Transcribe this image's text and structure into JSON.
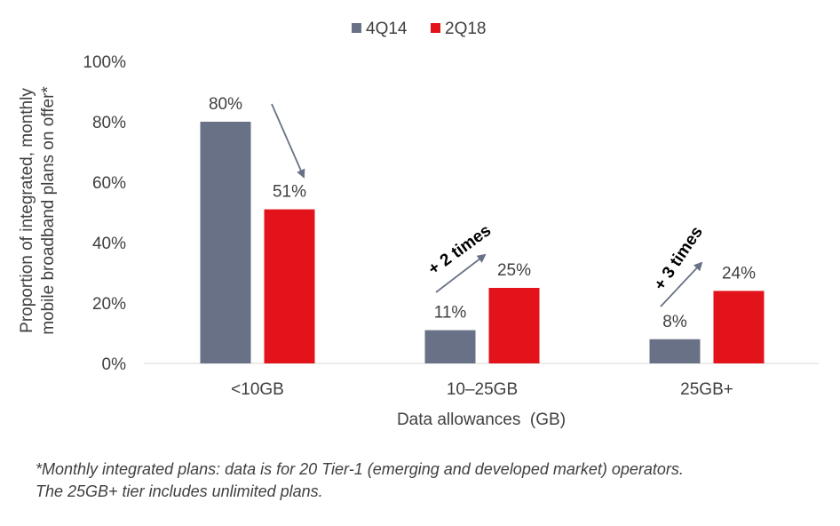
{
  "chart_data": {
    "type": "bar",
    "categories": [
      "<10GB",
      "10–25GB",
      "25GB+"
    ],
    "series": [
      {
        "name": "4Q14",
        "color": "#687185",
        "values": [
          80,
          11,
          8
        ],
        "labels": [
          "80%",
          "11%",
          "8%"
        ]
      },
      {
        "name": "2Q18",
        "color": "#E3131B",
        "values": [
          51,
          25,
          24
        ],
        "labels": [
          "51%",
          "25%",
          "24%"
        ]
      }
    ],
    "ylim": [
      0,
      100
    ],
    "yticks": [
      "0%",
      "20%",
      "40%",
      "60%",
      "80%",
      "100%"
    ],
    "ytick_values": [
      0,
      20,
      40,
      60,
      80,
      100
    ],
    "xlabel": "Data allowances  (GB)",
    "ylabel_lines": [
      "Proportion of integrated, monthly",
      "mobile broadband plans on offer*"
    ],
    "legend_position": "top-center",
    "annotations": [
      {
        "text": "+ 2 times",
        "category": "10–25GB"
      },
      {
        "text": "+ 3 times",
        "category": "25GB+"
      }
    ],
    "grid": false
  },
  "footnote": {
    "line1": "*Monthly integrated plans: data is for 20 Tier-1 (emerging and developed market) operators.",
    "line2": "The 25GB+ tier includes unlimited plans."
  }
}
